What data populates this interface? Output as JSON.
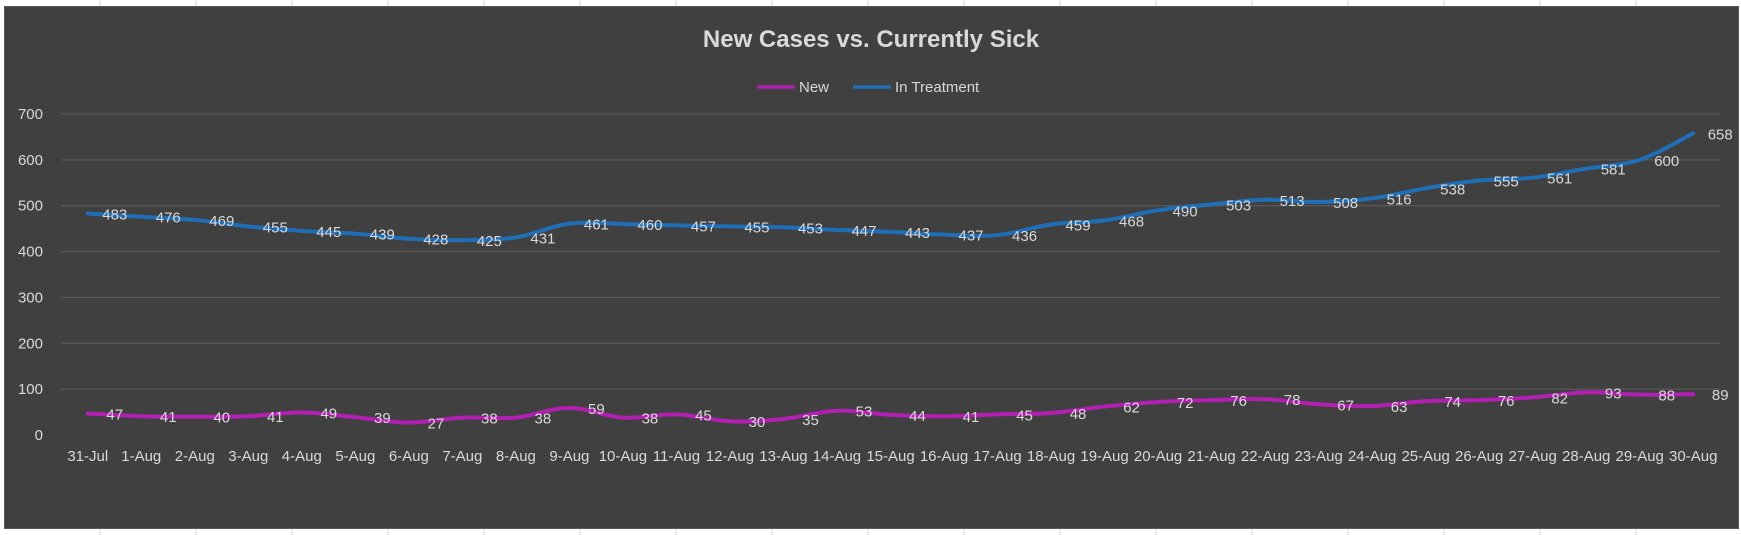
{
  "chart_data": {
    "type": "line",
    "title": "New Cases vs. Currently Sick",
    "categories": [
      "31-Jul",
      "1-Aug",
      "2-Aug",
      "3-Aug",
      "4-Aug",
      "5-Aug",
      "6-Aug",
      "7-Aug",
      "8-Aug",
      "9-Aug",
      "10-Aug",
      "11-Aug",
      "12-Aug",
      "13-Aug",
      "14-Aug",
      "15-Aug",
      "16-Aug",
      "17-Aug",
      "18-Aug",
      "19-Aug",
      "20-Aug",
      "21-Aug",
      "22-Aug",
      "23-Aug",
      "24-Aug",
      "25-Aug",
      "26-Aug",
      "27-Aug",
      "28-Aug",
      "29-Aug",
      "30-Aug"
    ],
    "series": [
      {
        "name": "New",
        "color": "#b31eb3",
        "values": [
          47,
          41,
          40,
          41,
          49,
          39,
          27,
          38,
          38,
          59,
          38,
          45,
          30,
          35,
          53,
          44,
          41,
          45,
          48,
          62,
          72,
          76,
          78,
          67,
          63,
          74,
          76,
          82,
          93,
          88,
          89
        ]
      },
      {
        "name": "In Treatment",
        "color": "#1f6fb8",
        "values": [
          483,
          476,
          469,
          455,
          445,
          439,
          428,
          425,
          431,
          461,
          460,
          457,
          455,
          453,
          447,
          443,
          437,
          436,
          459,
          468,
          490,
          503,
          513,
          508,
          516,
          538,
          555,
          561,
          581,
          600,
          658
        ]
      }
    ],
    "ylim": [
      0,
      700
    ],
    "yticks": [
      0,
      100,
      200,
      300,
      400,
      500,
      600,
      700
    ],
    "grid": true,
    "legend_position": "top",
    "data_labels": true
  }
}
